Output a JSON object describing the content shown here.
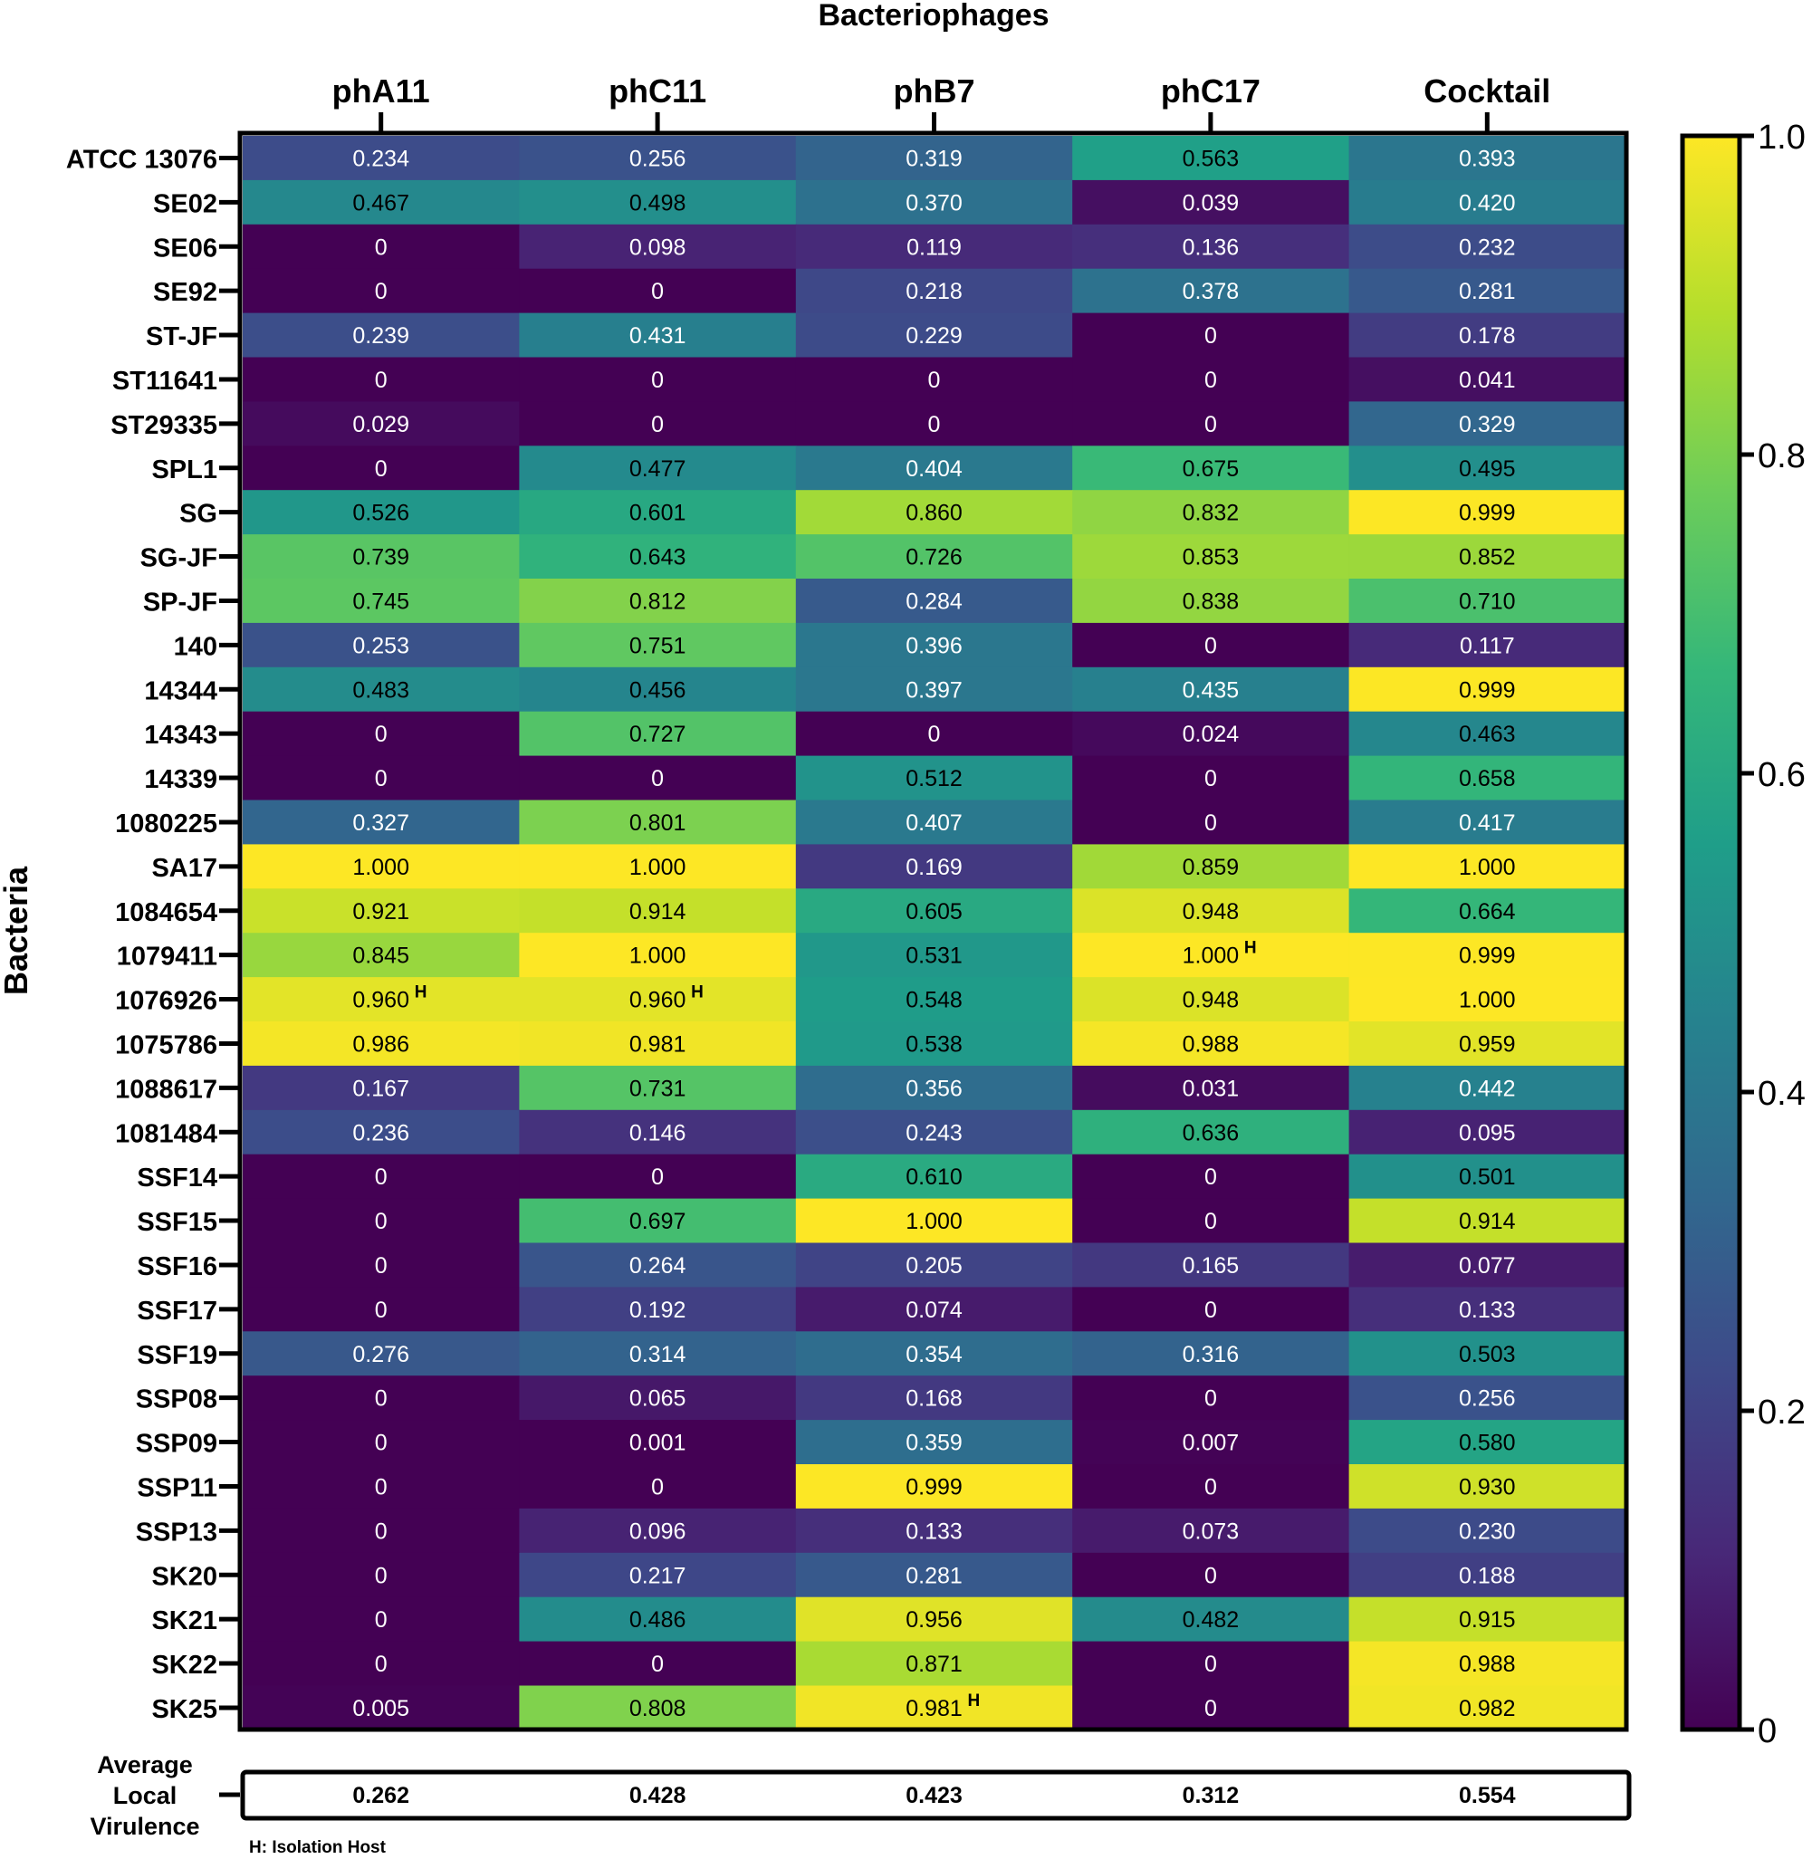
{
  "chart_data": {
    "type": "heatmap",
    "title": "Bacteriophages",
    "ylabel": "Bacteria",
    "columns": [
      "phA11",
      "phC11",
      "phB7",
      "phC17",
      "Cocktail"
    ],
    "rows": [
      "ATCC 13076",
      "SE02",
      "SE06",
      "SE92",
      "ST-JF",
      "ST11641",
      "ST29335",
      "SPL1",
      "SG",
      "SG-JF",
      "SP-JF",
      "140",
      "14344",
      "14343",
      "14339",
      "1080225",
      "SA17",
      "1084654",
      "1079411",
      "1076926",
      "1075786",
      "1088617",
      "1081484",
      "SSF14",
      "SSF15",
      "SSF16",
      "SSF17",
      "SSF19",
      "SSP08",
      "SSP09",
      "SSP11",
      "SSP13",
      "SK20",
      "SK21",
      "SK22",
      "SK25"
    ],
    "values": [
      [
        "0.234",
        "0.256",
        "0.319",
        "0.563",
        "0.393"
      ],
      [
        "0.467",
        "0.498",
        "0.370",
        "0.039",
        "0.420"
      ],
      [
        "0",
        "0.098",
        "0.119",
        "0.136",
        "0.232"
      ],
      [
        "0",
        "0",
        "0.218",
        "0.378",
        "0.281"
      ],
      [
        "0.239",
        "0.431",
        "0.229",
        "0",
        "0.178"
      ],
      [
        "0",
        "0",
        "0",
        "0",
        "0.041"
      ],
      [
        "0.029",
        "0",
        "0",
        "0",
        "0.329"
      ],
      [
        "0",
        "0.477",
        "0.404",
        "0.675",
        "0.495"
      ],
      [
        "0.526",
        "0.601",
        "0.860",
        "0.832",
        "0.999"
      ],
      [
        "0.739",
        "0.643",
        "0.726",
        "0.853",
        "0.852"
      ],
      [
        "0.745",
        "0.812",
        "0.284",
        "0.838",
        "0.710"
      ],
      [
        "0.253",
        "0.751",
        "0.396",
        "0",
        "0.117"
      ],
      [
        "0.483",
        "0.456",
        "0.397",
        "0.435",
        "0.999"
      ],
      [
        "0",
        "0.727",
        "0",
        "0.024",
        "0.463"
      ],
      [
        "0",
        "0",
        "0.512",
        "0",
        "0.658"
      ],
      [
        "0.327",
        "0.801",
        "0.407",
        "0",
        "0.417"
      ],
      [
        "1.000",
        "1.000",
        "0.169",
        "0.859",
        "1.000"
      ],
      [
        "0.921",
        "0.914",
        "0.605",
        "0.948",
        "0.664"
      ],
      [
        "0.845",
        "1.000",
        "0.531",
        "1.000",
        "0.999"
      ],
      [
        "0.960",
        "0.960",
        "0.548",
        "0.948",
        "1.000"
      ],
      [
        "0.986",
        "0.981",
        "0.538",
        "0.988",
        "0.959"
      ],
      [
        "0.167",
        "0.731",
        "0.356",
        "0.031",
        "0.442"
      ],
      [
        "0.236",
        "0.146",
        "0.243",
        "0.636",
        "0.095"
      ],
      [
        "0",
        "0",
        "0.610",
        "0",
        "0.501"
      ],
      [
        "0",
        "0.697",
        "1.000",
        "0",
        "0.914"
      ],
      [
        "0",
        "0.264",
        "0.205",
        "0.165",
        "0.077"
      ],
      [
        "0",
        "0.192",
        "0.074",
        "0",
        "0.133"
      ],
      [
        "0.276",
        "0.314",
        "0.354",
        "0.316",
        "0.503"
      ],
      [
        "0",
        "0.065",
        "0.168",
        "0",
        "0.256"
      ],
      [
        "0",
        "0.001",
        "0.359",
        "0.007",
        "0.580"
      ],
      [
        "0",
        "0",
        "0.999",
        "0",
        "0.930"
      ],
      [
        "0",
        "0.096",
        "0.133",
        "0.073",
        "0.230"
      ],
      [
        "0",
        "0.217",
        "0.281",
        "0",
        "0.188"
      ],
      [
        "0",
        "0.486",
        "0.956",
        "0.482",
        "0.915"
      ],
      [
        "0",
        "0",
        "0.871",
        "0",
        "0.988"
      ],
      [
        "0.005",
        "0.808",
        "0.981",
        "0",
        "0.982"
      ]
    ],
    "isolation_host_cells": [
      [
        18,
        3
      ],
      [
        19,
        0
      ],
      [
        19,
        1
      ],
      [
        35,
        2
      ]
    ],
    "isolation_host_mark": "H",
    "colorbar": {
      "min": 0,
      "max": 1,
      "ticks": [
        "0",
        "0.2",
        "0.4",
        "0.6",
        "0.8",
        "1.0"
      ],
      "colormap": "viridis"
    },
    "average": {
      "label_lines": [
        "Average",
        "Local",
        "Virulence"
      ],
      "values": [
        "0.262",
        "0.428",
        "0.423",
        "0.312",
        "0.554"
      ]
    },
    "footnote": "H: Isolation Host",
    "colors": {
      "low": "#440154",
      "mid": "#21918c",
      "high": "#fde725",
      "border": "#000000"
    }
  }
}
